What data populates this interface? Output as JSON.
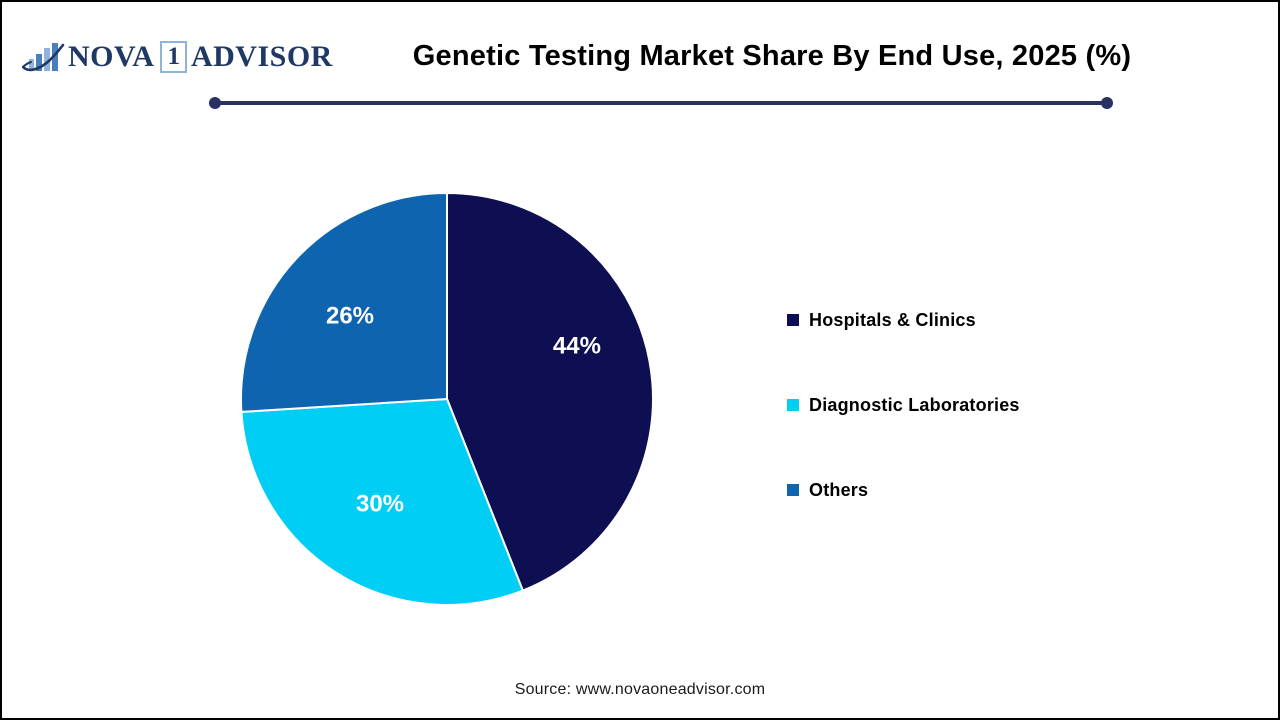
{
  "header": {
    "title": "Genetic Testing Market Share By End Use, 2025 (%)"
  },
  "logo": {
    "word_left": "NOVA",
    "mark": "1",
    "word_right": "ADVISOR",
    "icon": "bar-chart-swoosh-icon"
  },
  "footer": {
    "source": "Source: www.novaoneadvisor.com"
  },
  "chart_data": {
    "type": "pie",
    "title": "Genetic Testing Market Share By End Use, 2025 (%)",
    "unit": "%",
    "start_angle_deg": 0,
    "direction": "clockwise",
    "legend_position": "right",
    "data_labels": "inside",
    "segments": [
      {
        "label": "Hospitals & Clinics",
        "value": 44,
        "color": "#0E0E52"
      },
      {
        "label": "Diagnostic Laboratories",
        "value": 30,
        "color": "#00CEF5"
      },
      {
        "label": "Others",
        "value": 26,
        "color": "#0E64AF"
      }
    ]
  },
  "style": {
    "divider_color": "#283163",
    "slice_label_color": "#FFFFFF",
    "slice_border_color": "#FFFFFF",
    "logo_navy": "#1F3864",
    "logo_light_blue": "#8FB3DC",
    "logo_mid_blue": "#4A7EBD",
    "page_border_color": "#000000"
  }
}
